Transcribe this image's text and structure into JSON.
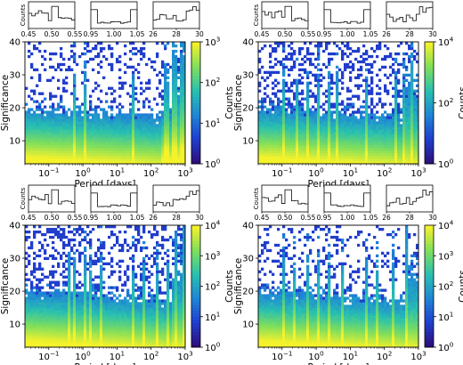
{
  "chart_data": [
    {
      "type": "heatmap",
      "position": "top-left",
      "xlabel": "Period [days]",
      "ylabel": "Significance",
      "colorbar_label": "Counts",
      "xscale": "log",
      "xlim": [
        0.02,
        1000
      ],
      "ylim": [
        3,
        40
      ],
      "x_ticks": [
        "10^-1",
        "10^0",
        "10^1",
        "10^2",
        "10^3"
      ],
      "y_ticks": [
        10,
        20,
        30,
        40
      ],
      "colorbar_max_exp": 3,
      "colorbar_ticks": [
        "10^0",
        "10^1",
        "10^2",
        "10^3"
      ],
      "colormap": [
        "#2d0f7a",
        "#1f3fd0",
        "#1f86d6",
        "#28c0b0",
        "#7ede5c",
        "#f4f22a"
      ],
      "spikes_days": [
        0.5,
        1.0,
        27.3,
        230,
        300,
        400,
        520,
        650,
        850
      ],
      "insets": [
        {
          "x_ticks": [
            "0.45",
            "0.50",
            "0.55"
          ],
          "ylabel": "Counts"
        },
        {
          "x_ticks": [
            "0.95",
            "1.00",
            "1.05"
          ]
        },
        {
          "x_ticks": [
            "26",
            "28",
            "30"
          ]
        }
      ]
    },
    {
      "type": "heatmap",
      "position": "top-right",
      "xlabel": "Period [days]",
      "ylabel": "Significance",
      "colorbar_label": "Counts",
      "xscale": "log",
      "xlim": [
        0.02,
        1000
      ],
      "ylim": [
        3,
        40
      ],
      "x_ticks": [
        "10^-1",
        "10^0",
        "10^1",
        "10^2",
        "10^3"
      ],
      "y_ticks": [
        10,
        20,
        30,
        40
      ],
      "colorbar_max_exp": 4,
      "colorbar_ticks": [
        "10^0",
        "10^2",
        "10^4"
      ],
      "colormap": [
        "#2d0f7a",
        "#1f3fd0",
        "#1f86d6",
        "#28c0b0",
        "#7ede5c",
        "#f4f22a"
      ],
      "spikes_days": [
        0.1,
        0.25,
        0.5,
        1.0,
        2.0,
        4.0,
        27.3,
        200,
        350,
        600
      ],
      "insets": [
        {
          "x_ticks": [
            "0.45",
            "0.50",
            "0.55"
          ],
          "ylabel": "Counts"
        },
        {
          "x_ticks": [
            "0.95",
            "1.00",
            "1.05"
          ]
        },
        {
          "x_ticks": [
            "26",
            "28",
            "30"
          ]
        }
      ]
    },
    {
      "type": "heatmap",
      "position": "bottom-left",
      "xlabel": "Period [days]",
      "ylabel": "Significance",
      "colorbar_label": "Counts",
      "xscale": "log",
      "xlim": [
        0.02,
        1000
      ],
      "ylim": [
        3,
        40
      ],
      "x_ticks": [
        "10^-1",
        "10^0",
        "10^1",
        "10^2",
        "10^3"
      ],
      "y_ticks": [
        10,
        20,
        30,
        40
      ],
      "colorbar_max_exp": 4,
      "colorbar_ticks": [
        "10^0",
        "10^1",
        "10^2",
        "10^3",
        "10^4"
      ],
      "colormap": [
        "#2d0f7a",
        "#1f3fd0",
        "#1f86d6",
        "#28c0b0",
        "#7ede5c",
        "#f4f22a"
      ],
      "spikes_days": [
        0.33,
        0.5,
        1.0,
        1.5,
        3.0,
        27.3,
        55,
        150,
        300,
        500,
        800
      ],
      "insets": [
        {
          "x_ticks": [
            "0.45",
            "0.50",
            "0.55"
          ],
          "ylabel": "Counts"
        },
        {
          "x_ticks": [
            "0.95",
            "1.00",
            "1.05"
          ]
        },
        {
          "x_ticks": [
            "26",
            "28",
            "30"
          ]
        }
      ]
    },
    {
      "type": "heatmap",
      "position": "bottom-right",
      "xlabel": "Period [days]",
      "ylabel": "Significance",
      "colorbar_label": "Counts",
      "xscale": "log",
      "xlim": [
        0.02,
        1000
      ],
      "ylim": [
        3,
        40
      ],
      "x_ticks": [
        "10^-1",
        "10^0",
        "10^1",
        "10^2",
        "10^3"
      ],
      "y_ticks": [
        10,
        20,
        30,
        40
      ],
      "colorbar_max_exp": 4,
      "colorbar_ticks": [
        "10^0",
        "10^1",
        "10^2",
        "10^3",
        "10^4"
      ],
      "colormap": [
        "#2d0f7a",
        "#1f3fd0",
        "#1f86d6",
        "#28c0b0",
        "#7ede5c",
        "#f4f22a"
      ],
      "spikes_days": [
        0.1,
        0.2,
        0.5,
        1.0,
        2.0,
        5.0,
        27.3,
        60,
        180,
        420
      ],
      "insets": [
        {
          "x_ticks": [
            "0.45",
            "0.50",
            "0.55"
          ],
          "ylabel": "Counts"
        },
        {
          "x_ticks": [
            "0.95",
            "1.00",
            "1.05"
          ]
        },
        {
          "x_ticks": [
            "26",
            "28",
            "30"
          ]
        }
      ]
    }
  ]
}
